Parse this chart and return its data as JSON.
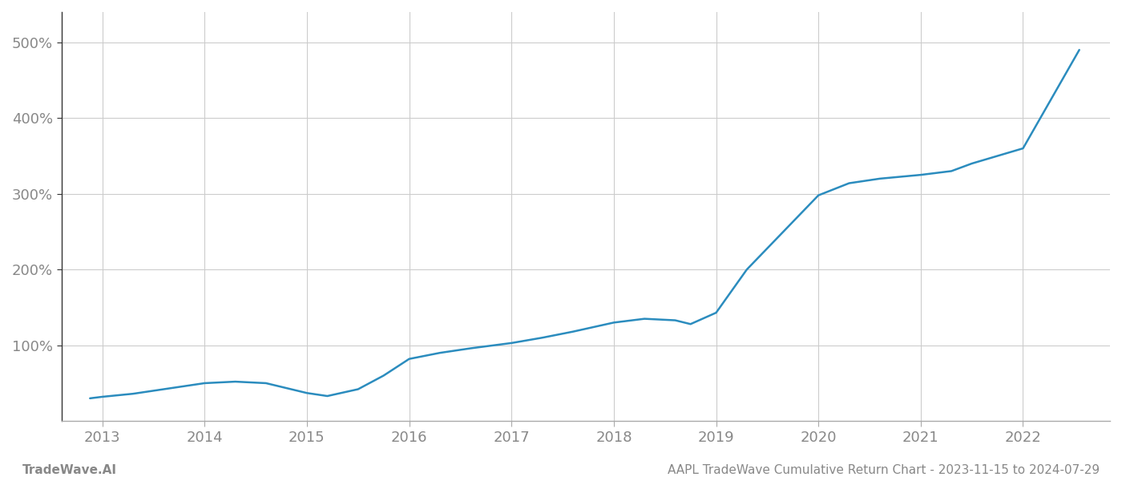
{
  "title": "",
  "bottom_left_label": "TradeWave.AI",
  "bottom_center_label": "AAPL TradeWave Cumulative Return Chart - 2023-11-15 to 2024-07-29",
  "line_color": "#2b8cbe",
  "line_width": 1.8,
  "background_color": "#ffffff",
  "grid_color": "#cccccc",
  "text_color": "#888888",
  "x_years": [
    2013,
    2014,
    2015,
    2016,
    2017,
    2018,
    2019,
    2020,
    2021,
    2022
  ],
  "y_ticks": [
    100,
    200,
    300,
    400,
    500
  ],
  "y_tick_labels": [
    "100%",
    "200%",
    "300%",
    "400%",
    "500%"
  ],
  "data_x": [
    2012.88,
    2013.0,
    2013.3,
    2013.7,
    2014.0,
    2014.3,
    2014.6,
    2015.0,
    2015.2,
    2015.5,
    2015.75,
    2016.0,
    2016.3,
    2016.6,
    2017.0,
    2017.3,
    2017.6,
    2018.0,
    2018.3,
    2018.6,
    2018.75,
    2019.0,
    2019.3,
    2019.6,
    2020.0,
    2020.3,
    2020.6,
    2021.0,
    2021.3,
    2021.5,
    2021.75,
    2022.0,
    2022.55
  ],
  "data_y": [
    30,
    32,
    36,
    44,
    50,
    52,
    50,
    37,
    33,
    42,
    60,
    82,
    90,
    96,
    103,
    110,
    118,
    130,
    135,
    133,
    128,
    143,
    200,
    242,
    298,
    314,
    320,
    325,
    330,
    340,
    350,
    360,
    490
  ],
  "xlim": [
    2012.6,
    2022.85
  ],
  "ylim": [
    0,
    540
  ]
}
